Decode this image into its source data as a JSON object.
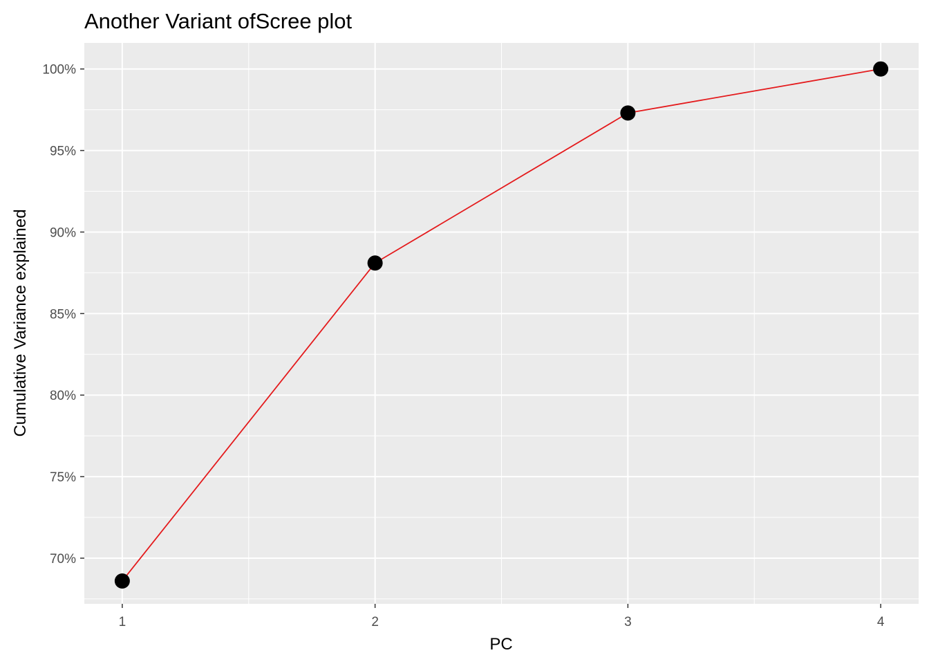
{
  "chart_data": {
    "type": "line",
    "title": "Another Variant ofScree plot",
    "xlabel": "PC",
    "ylabel": "Cumulative Variance explained",
    "x": [
      1,
      2,
      3,
      4
    ],
    "series": [
      {
        "name": "Cumulative Variance explained",
        "values": [
          68.6,
          88.1,
          97.3,
          100.0
        ]
      }
    ],
    "xticks": [
      1,
      2,
      3,
      4
    ],
    "xtick_labels": [
      "1",
      "2",
      "3",
      "4"
    ],
    "yticks": [
      70,
      75,
      80,
      85,
      90,
      95,
      100
    ],
    "ytick_labels": [
      "70%",
      "75%",
      "80%",
      "85%",
      "90%",
      "95%",
      "100%"
    ],
    "xlim": [
      0.85,
      4.15
    ],
    "ylim": [
      67.2,
      101.6
    ],
    "line_color": "#e41a1c",
    "point_color": "#000000",
    "panel_background": "#ebebeb",
    "grid": true,
    "legend": "none"
  }
}
